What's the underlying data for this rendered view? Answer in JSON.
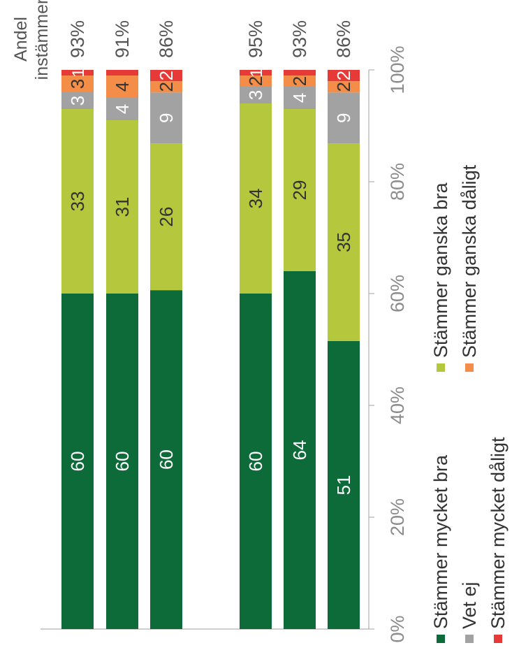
{
  "chart_data": {
    "type": "bar",
    "orientation": "horizontal-stacked-percent",
    "categories": [
      "",
      "",
      "",
      "",
      "",
      ""
    ],
    "groups": [
      [
        0,
        1,
        2
      ],
      [
        3,
        4,
        5
      ]
    ],
    "series": [
      {
        "name": "Stämmer mycket bra",
        "color": "#0d6b39",
        "label_color": "#ffffff",
        "values": [
          60,
          60,
          60,
          60,
          64,
          51
        ]
      },
      {
        "name": "Stämmer ganska bra",
        "color": "#b5c73c",
        "label_color": "#333333",
        "values": [
          33,
          31,
          26,
          34,
          29,
          35
        ]
      },
      {
        "name": "Vet ej",
        "color": "#a2a2a2",
        "label_color": "#ffffff",
        "values": [
          3,
          4,
          9,
          3,
          4,
          9
        ]
      },
      {
        "name": "Stämmer ganska dåligt",
        "color": "#f38d47",
        "label_color": "#333333",
        "values": [
          3,
          4,
          2,
          2,
          2,
          2
        ]
      },
      {
        "name": "Stämmer mycket dåligt",
        "color": "#e53a38",
        "label_color": "#ffffff",
        "values": [
          1,
          1,
          2,
          1,
          1,
          2
        ]
      }
    ],
    "data_labels": [
      [
        "60",
        "33",
        "3",
        "3",
        "1"
      ],
      [
        "60",
        "31",
        "4",
        "4",
        ""
      ],
      [
        "60",
        "26",
        "9",
        "2",
        "2"
      ],
      [
        "60",
        "34",
        "3",
        "2",
        "1"
      ],
      [
        "64",
        "29",
        "4",
        "2",
        ""
      ],
      [
        "51",
        "35",
        "9",
        "2",
        "2"
      ]
    ],
    "share_agree_header": [
      "Andel",
      "instämmer"
    ],
    "share_agree": [
      "93%",
      "91%",
      "86%",
      "95%",
      "93%",
      "86%"
    ],
    "xlim": [
      0,
      100
    ],
    "ticks": [
      "0%",
      "20%",
      "40%",
      "60%",
      "80%",
      "100%"
    ],
    "legend_position": "bottom",
    "grid": false
  }
}
